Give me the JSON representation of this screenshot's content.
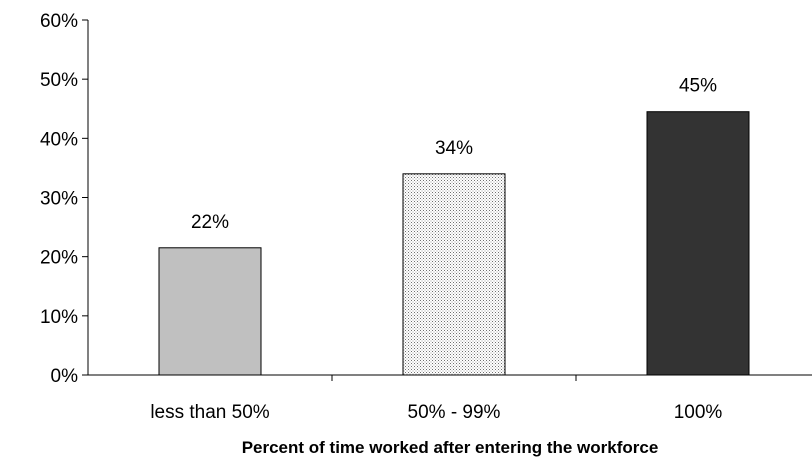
{
  "chart_data": {
    "type": "bar",
    "title": "",
    "xlabel": "Percent of time worked after entering the workforce",
    "ylabel": "",
    "ylim": [
      0,
      60
    ],
    "yticks": [
      0,
      10,
      20,
      30,
      40,
      50,
      60
    ],
    "ytick_labels": [
      "0%",
      "10%",
      "20%",
      "30%",
      "40%",
      "50%",
      "60%"
    ],
    "grid": false,
    "categories": [
      "less than 50%",
      "50% - 99%",
      "100%"
    ],
    "values": [
      21.5,
      34,
      44.5
    ],
    "value_labels": [
      "22%",
      "34%",
      "45%"
    ],
    "bar_fills": [
      "#c0c0c0",
      "dotted",
      "#333333"
    ]
  }
}
